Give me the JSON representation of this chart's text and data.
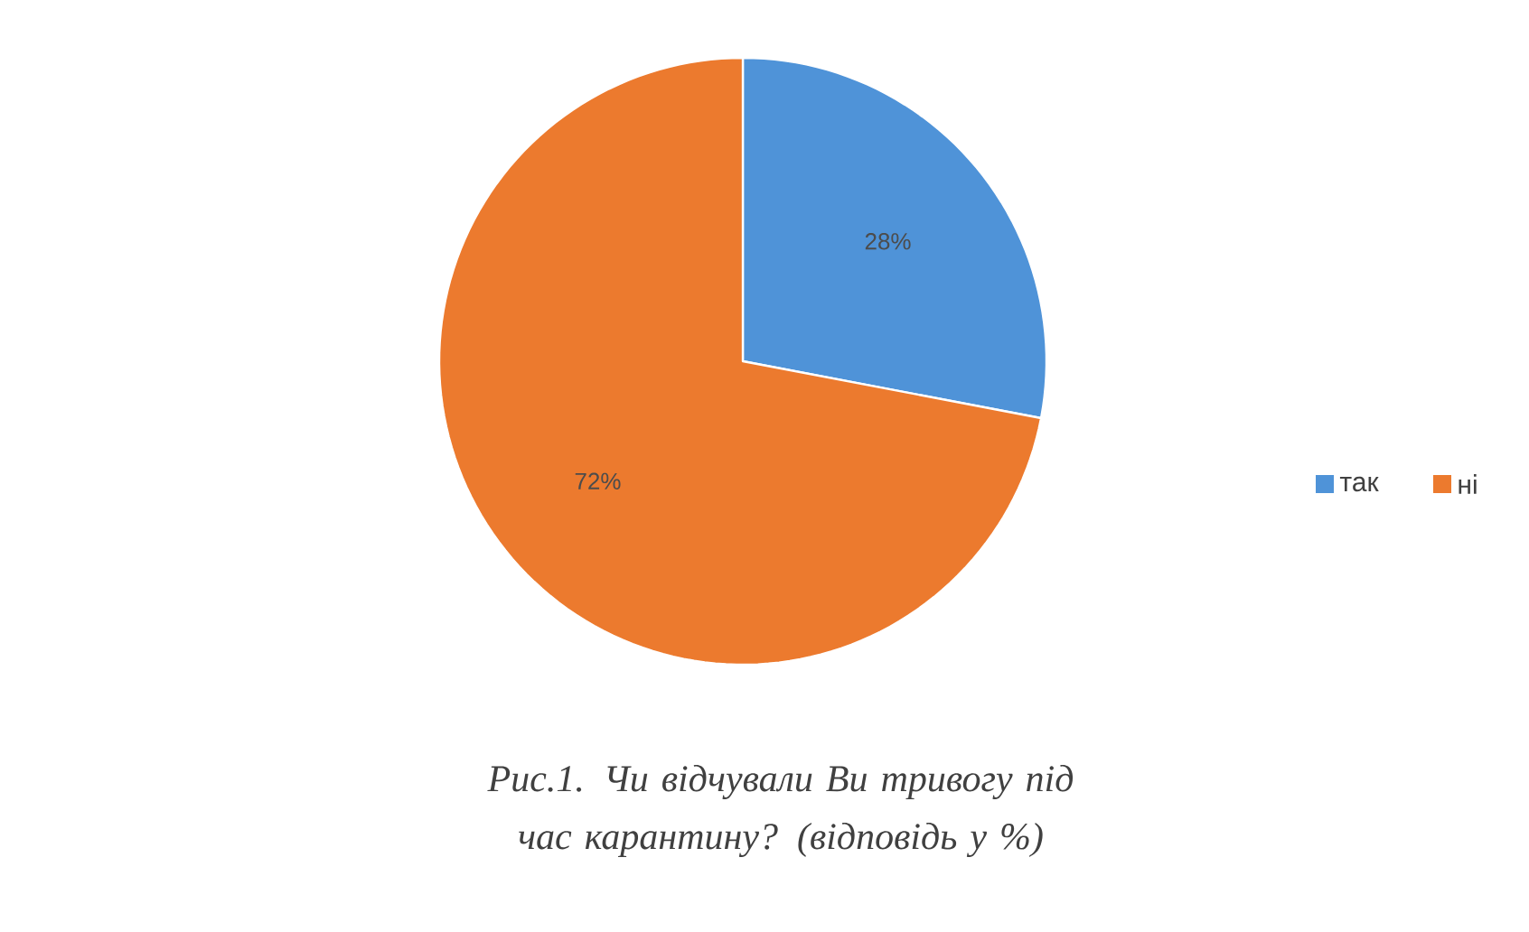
{
  "chart_data": {
    "type": "pie",
    "title": "Рис.1. Чи відчували Ви тривогу під час карантину? (відповідь у %)",
    "categories": [
      "так",
      "ні"
    ],
    "values": [
      28,
      72
    ],
    "colors": [
      "#4f93d8",
      "#ec7a2e"
    ],
    "value_labels": [
      "28%",
      "72%"
    ],
    "legend": "right"
  }
}
